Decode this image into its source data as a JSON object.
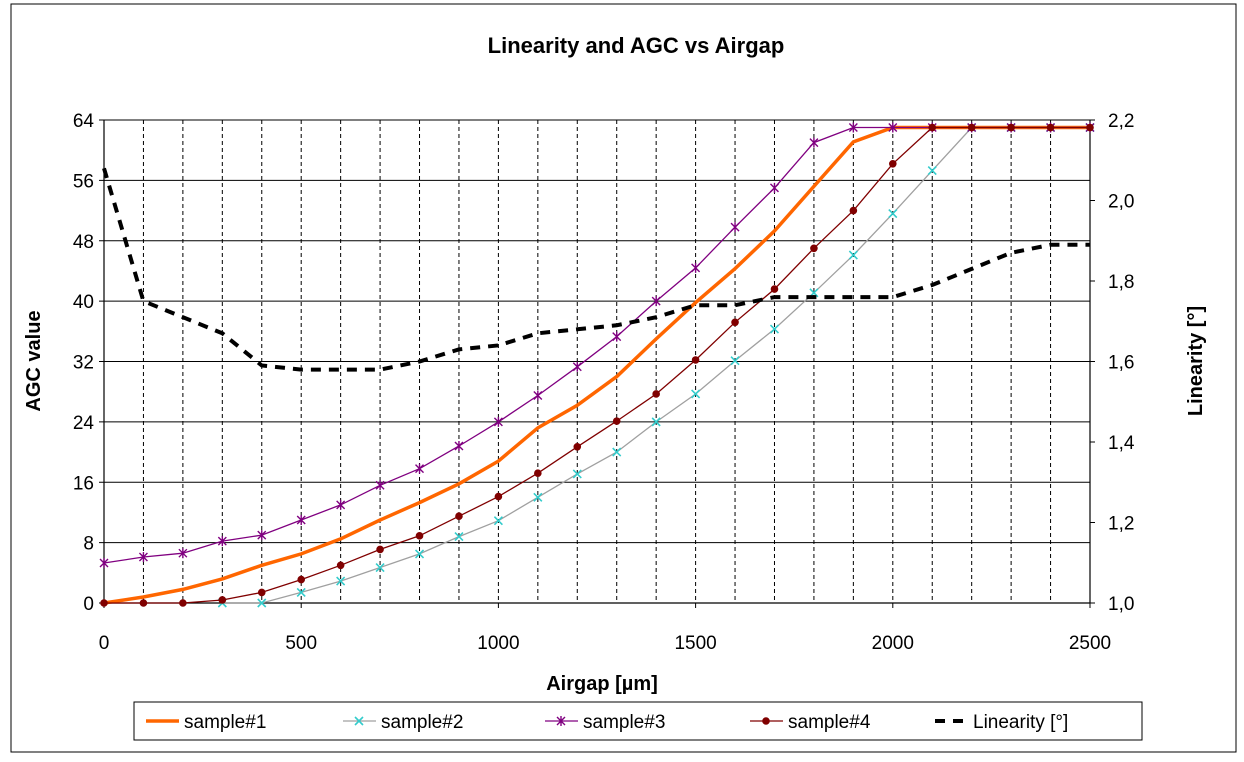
{
  "chart_data": {
    "type": "line",
    "title": "Linearity and AGC vs Airgap",
    "xlabel": "Airgap   [µm]",
    "ylabel": "AGC value",
    "y2label": "Linearity [°]",
    "xlim": [
      0,
      2500
    ],
    "ylim": [
      0,
      64
    ],
    "y2lim": [
      1.0,
      2.2
    ],
    "xticks": [
      0,
      500,
      1000,
      1500,
      2000,
      2500
    ],
    "xtick_labels": [
      "0",
      "500",
      "1000",
      "1500",
      "2000",
      "2500"
    ],
    "yticks": [
      0,
      8,
      16,
      24,
      32,
      40,
      48,
      56,
      64
    ],
    "ytick_labels": [
      "0",
      "8",
      "16",
      "24",
      "32",
      "40",
      "48",
      "56",
      "64"
    ],
    "y2ticks": [
      1.0,
      1.2,
      1.4,
      1.6,
      1.8,
      2.0,
      2.2
    ],
    "y2tick_labels": [
      "1,0",
      "1,2",
      "1,4",
      "1,6",
      "1,8",
      "2,0",
      "2,2"
    ],
    "x_gridlines": [
      100,
      200,
      300,
      400,
      500,
      600,
      700,
      800,
      900,
      1000,
      1100,
      1200,
      1300,
      1400,
      1500,
      1600,
      1700,
      1800,
      1900,
      2000,
      2100,
      2200,
      2300,
      2400
    ],
    "y_gridlines": [
      8,
      16,
      24,
      32,
      40,
      48,
      56,
      64
    ],
    "grid": true,
    "legend_position": "bottom",
    "x": [
      0,
      100,
      200,
      300,
      400,
      500,
      600,
      700,
      800,
      900,
      1000,
      1100,
      1200,
      1300,
      1400,
      1500,
      1600,
      1700,
      1800,
      1900,
      2000,
      2100,
      2200,
      2300,
      2400,
      2500
    ],
    "series": [
      {
        "name": "sample#1",
        "axis": "left",
        "color": "#ff6600",
        "marker": "none",
        "style": "solid-thick",
        "values": [
          0,
          0.8,
          1.8,
          3.2,
          5.0,
          6.5,
          8.5,
          11.0,
          13.3,
          15.8,
          18.8,
          23.2,
          26.2,
          30.0,
          35.0,
          39.8,
          44.3,
          49.3,
          55.2,
          61.1,
          63.0,
          63.0,
          63.0,
          63.0,
          63.0,
          63.0
        ]
      },
      {
        "name": "sample#2",
        "axis": "left",
        "color": "#33cccc",
        "line_color": "#a0a0a0",
        "marker": "x",
        "style": "solid",
        "values": [
          null,
          null,
          null,
          0,
          0,
          1.4,
          2.9,
          4.7,
          6.5,
          8.8,
          10.9,
          14.0,
          17.1,
          20.0,
          24.0,
          27.7,
          32.1,
          36.3,
          41.1,
          46.1,
          51.6,
          57.3,
          63.0,
          63.0,
          63.0,
          63.0
        ]
      },
      {
        "name": "sample#3",
        "axis": "left",
        "color": "#800080",
        "marker": "asterisk",
        "style": "solid",
        "values": [
          5.3,
          6.1,
          6.6,
          8.2,
          9.0,
          11.0,
          13.0,
          15.6,
          17.8,
          20.8,
          24.0,
          27.5,
          31.3,
          35.3,
          40.0,
          44.4,
          49.8,
          55.0,
          61.0,
          63.0,
          63.0,
          63.0,
          63.0,
          63.0,
          63.0,
          63.0
        ]
      },
      {
        "name": "sample#4",
        "axis": "left",
        "color": "#800000",
        "marker": "dot",
        "style": "solid",
        "values": [
          0,
          0,
          0,
          0.4,
          1.4,
          3.1,
          5.0,
          7.1,
          8.9,
          11.5,
          14.1,
          17.2,
          20.7,
          24.1,
          27.7,
          32.2,
          37.2,
          41.6,
          47.0,
          52.0,
          58.2,
          63.0,
          63.0,
          63.0,
          63.0,
          63.0
        ]
      },
      {
        "name": "Linearity [°]",
        "axis": "right",
        "color": "#000000",
        "marker": "none",
        "style": "dashed",
        "values": [
          2.08,
          1.75,
          1.71,
          1.67,
          1.59,
          1.58,
          1.58,
          1.58,
          1.6,
          1.63,
          1.64,
          1.67,
          1.68,
          1.69,
          1.71,
          1.74,
          1.74,
          1.76,
          1.76,
          1.76,
          1.76,
          1.79,
          1.83,
          1.87,
          1.89,
          1.89
        ]
      }
    ]
  }
}
